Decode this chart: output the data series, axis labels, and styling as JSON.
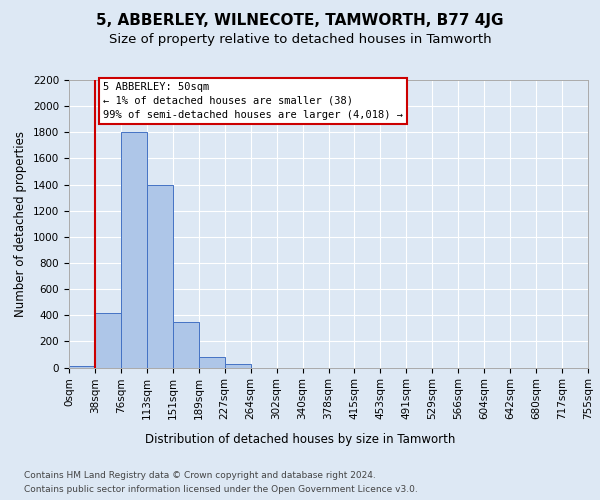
{
  "title": "5, ABBERLEY, WILNECOTE, TAMWORTH, B77 4JG",
  "subtitle": "Size of property relative to detached houses in Tamworth",
  "xlabel": "Distribution of detached houses by size in Tamworth",
  "ylabel": "Number of detached properties",
  "bar_values": [
    15,
    420,
    1800,
    1400,
    350,
    80,
    25,
    0,
    0,
    0,
    0,
    0,
    0,
    0,
    0,
    0,
    0,
    0,
    0
  ],
  "bin_labels": [
    "0sqm",
    "38sqm",
    "76sqm",
    "113sqm",
    "151sqm",
    "189sqm",
    "227sqm",
    "264sqm",
    "302sqm",
    "340sqm",
    "378sqm",
    "415sqm",
    "453sqm",
    "491sqm",
    "529sqm",
    "566sqm",
    "604sqm",
    "642sqm",
    "680sqm",
    "717sqm",
    "755sqm"
  ],
  "ylim": [
    0,
    2200
  ],
  "yticks": [
    0,
    200,
    400,
    600,
    800,
    1000,
    1200,
    1400,
    1600,
    1800,
    2000,
    2200
  ],
  "bar_color": "#aec6e8",
  "bar_edge_color": "#4472c4",
  "vline_x": 1,
  "vline_color": "#cc0000",
  "annotation_text": "5 ABBERLEY: 50sqm\n← 1% of detached houses are smaller (38)\n99% of semi-detached houses are larger (4,018) →",
  "annotation_box_color": "#ffffff",
  "annotation_box_edge": "#cc0000",
  "footer_line1": "Contains HM Land Registry data © Crown copyright and database right 2024.",
  "footer_line2": "Contains public sector information licensed under the Open Government Licence v3.0.",
  "bg_color": "#dde8f4",
  "plot_bg_color": "#dde8f4",
  "grid_color": "#ffffff",
  "title_fontsize": 11,
  "subtitle_fontsize": 9.5,
  "axis_label_fontsize": 8.5,
  "tick_fontsize": 7.5,
  "footer_fontsize": 6.5
}
